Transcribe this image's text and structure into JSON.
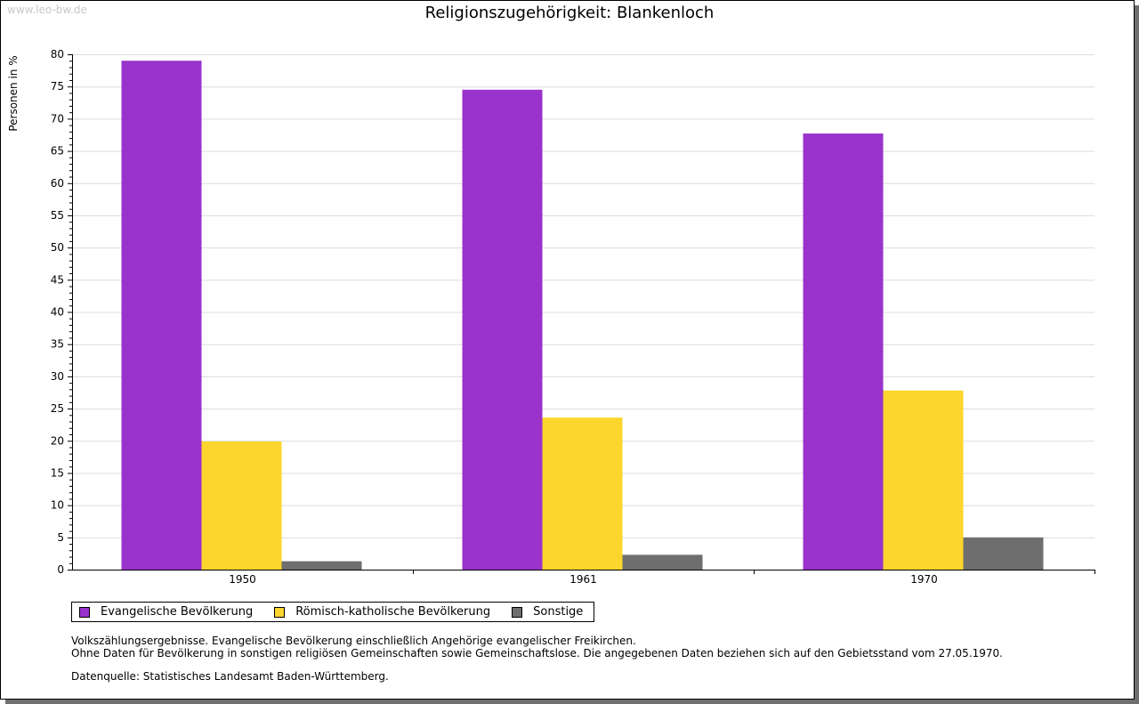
{
  "watermark": "www.leo-bw.de",
  "chart_data": {
    "type": "bar",
    "title": "Religionszugehörigkeit: Blankenloch",
    "xlabel": "",
    "ylabel": "Personen in %",
    "ylim": [
      0,
      80
    ],
    "yticks": [
      "0",
      "5",
      "10",
      "15",
      "20",
      "25",
      "30",
      "35",
      "40",
      "45",
      "50",
      "55",
      "60",
      "65",
      "70",
      "75",
      "80"
    ],
    "categories": [
      "1950",
      "1961",
      "1970"
    ],
    "series": [
      {
        "name": "Evangelische Bevölkerung",
        "color": "#9933cc",
        "values": [
          79.0,
          74.5,
          67.7
        ]
      },
      {
        "name": "Römisch-katholische Bevölkerung",
        "color": "#fcd62e",
        "values": [
          19.9,
          23.6,
          27.8
        ]
      },
      {
        "name": "Sonstige",
        "color": "#6e6e6e",
        "values": [
          1.3,
          2.3,
          5.0
        ]
      }
    ],
    "grid": true,
    "legend_position": "bottom-left"
  },
  "notes": [
    "Volkszählungsergebnisse. Evangelische Bevölkerung einschließlich Angehörige evangelischer Freikirchen.",
    "Ohne Daten für Bevölkerung in sonstigen religiösen Gemeinschaften sowie Gemeinschaftslose. Die angegebenen Daten beziehen sich auf den Gebietsstand vom 27.05.1970."
  ],
  "source": "Datenquelle: Statistisches Landesamt Baden-Württemberg."
}
